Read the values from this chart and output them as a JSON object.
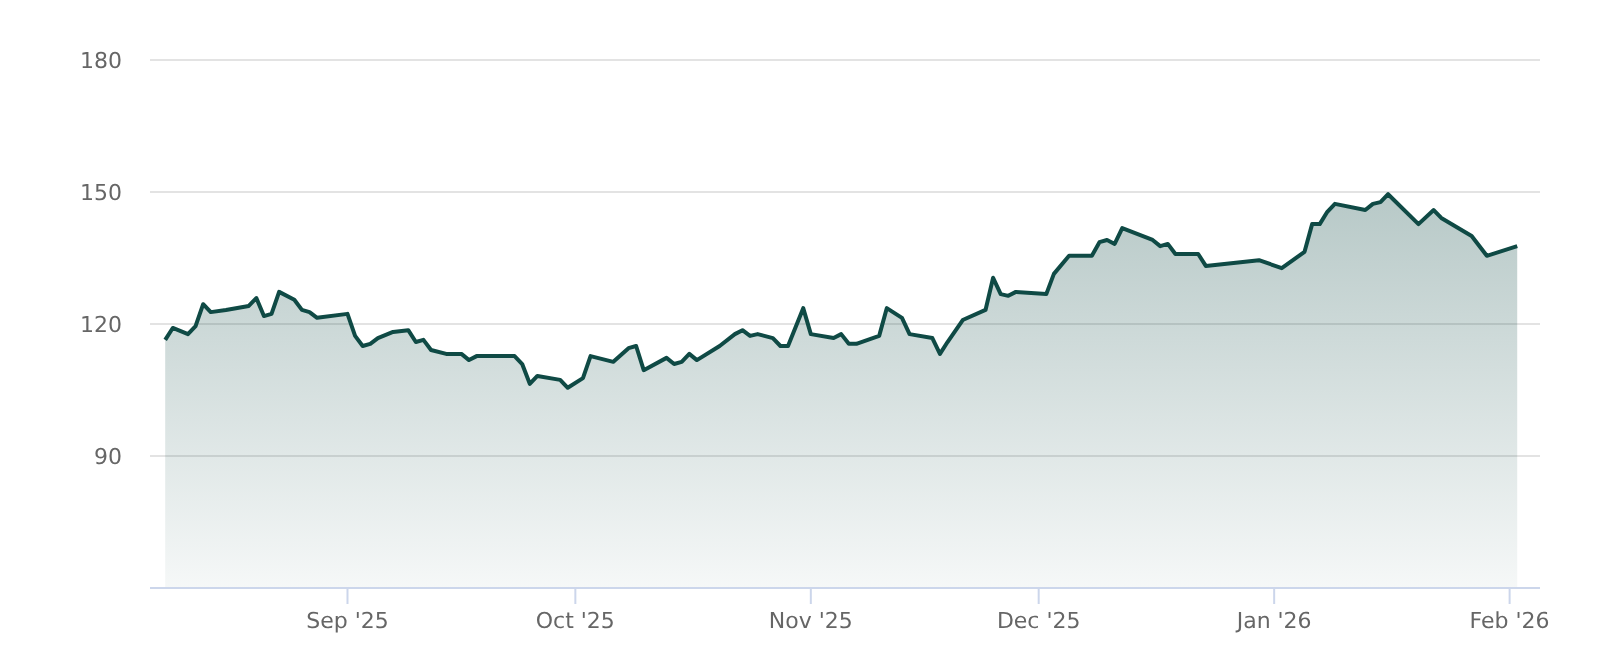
{
  "chart_data": {
    "type": "area",
    "x": [
      "2025-08-08",
      "2025-08-09",
      "2025-08-11",
      "2025-08-12",
      "2025-08-13",
      "2025-08-14",
      "2025-08-16",
      "2025-08-19",
      "2025-08-20",
      "2025-08-21",
      "2025-08-22",
      "2025-08-23",
      "2025-08-25",
      "2025-08-26",
      "2025-08-27",
      "2025-08-28",
      "2025-09-01",
      "2025-09-02",
      "2025-09-03",
      "2025-09-04",
      "2025-09-05",
      "2025-09-07",
      "2025-09-09",
      "2025-09-10",
      "2025-09-11",
      "2025-09-12",
      "2025-09-14",
      "2025-09-16",
      "2025-09-17",
      "2025-09-18",
      "2025-09-23",
      "2025-09-24",
      "2025-09-25",
      "2025-09-26",
      "2025-09-29",
      "2025-09-30",
      "2025-10-02",
      "2025-10-03",
      "2025-10-06",
      "2025-10-08",
      "2025-10-09",
      "2025-10-10",
      "2025-10-13",
      "2025-10-14",
      "2025-10-15",
      "2025-10-16",
      "2025-10-17",
      "2025-10-20",
      "2025-10-22",
      "2025-10-23",
      "2025-10-24",
      "2025-10-25",
      "2025-10-27",
      "2025-10-28",
      "2025-10-29",
      "2025-10-31",
      "2025-11-01",
      "2025-11-04",
      "2025-11-05",
      "2025-11-06",
      "2025-11-07",
      "2025-11-10",
      "2025-11-11",
      "2025-11-13",
      "2025-11-14",
      "2025-11-17",
      "2025-11-18",
      "2025-11-19",
      "2025-11-21",
      "2025-11-24",
      "2025-11-25",
      "2025-11-26",
      "2025-11-27",
      "2025-11-28",
      "2025-12-02",
      "2025-12-03",
      "2025-12-05",
      "2025-12-08",
      "2025-12-09",
      "2025-12-10",
      "2025-12-11",
      "2025-12-12",
      "2025-12-16",
      "2025-12-17",
      "2025-12-18",
      "2025-12-19",
      "2025-12-22",
      "2025-12-23",
      "2025-12-30",
      "2026-01-02",
      "2026-01-05",
      "2026-01-06",
      "2026-01-07",
      "2026-01-08",
      "2026-01-09",
      "2026-01-13",
      "2026-01-14",
      "2026-01-15",
      "2026-01-16",
      "2026-01-20",
      "2026-01-22",
      "2026-01-23",
      "2026-01-27",
      "2026-01-29",
      "2026-02-02"
    ],
    "series": [
      {
        "color": "#0f4a45",
        "values": [
          116.4,
          119.1,
          117.7,
          119.5,
          124.5,
          122.7,
          123.2,
          124.1,
          125.9,
          121.8,
          122.3,
          127.3,
          125.5,
          123.2,
          122.7,
          121.4,
          122.3,
          117.3,
          115.0,
          115.5,
          116.8,
          118.2,
          118.6,
          115.9,
          116.4,
          114.1,
          113.2,
          113.2,
          111.8,
          112.7,
          112.7,
          110.9,
          106.4,
          108.2,
          107.3,
          105.5,
          107.7,
          112.7,
          111.4,
          114.5,
          115.0,
          109.5,
          112.3,
          110.9,
          111.4,
          113.2,
          111.8,
          115.0,
          117.7,
          118.6,
          117.3,
          117.7,
          116.8,
          115.0,
          115.0,
          123.6,
          117.7,
          116.8,
          117.7,
          115.5,
          115.5,
          117.3,
          123.6,
          121.4,
          117.7,
          116.8,
          113.2,
          115.9,
          120.9,
          123.2,
          130.5,
          126.8,
          126.4,
          127.3,
          126.8,
          131.4,
          135.5,
          135.5,
          138.6,
          139.1,
          138.2,
          141.8,
          139.1,
          137.7,
          138.2,
          135.9,
          135.9,
          133.2,
          134.5,
          132.7,
          136.4,
          142.7,
          142.7,
          145.5,
          147.3,
          145.9,
          147.3,
          147.7,
          149.5,
          142.7,
          145.9,
          144.1,
          140.0,
          135.5,
          137.7
        ]
      }
    ],
    "xlim": [
      "2025-08-06",
      "2026-02-05"
    ],
    "xticks": [
      {
        "value": "2025-09-01",
        "label": "Sep '25"
      },
      {
        "value": "2025-10-01",
        "label": "Oct '25"
      },
      {
        "value": "2025-11-01",
        "label": "Nov '25"
      },
      {
        "value": "2025-12-01",
        "label": "Dec '25"
      },
      {
        "value": "2026-01-01",
        "label": "Jan '26"
      },
      {
        "value": "2026-02-01",
        "label": "Feb '26"
      }
    ],
    "ylim": [
      60,
      180
    ],
    "yticks": [
      90,
      120,
      150,
      180
    ],
    "grid": "y"
  }
}
